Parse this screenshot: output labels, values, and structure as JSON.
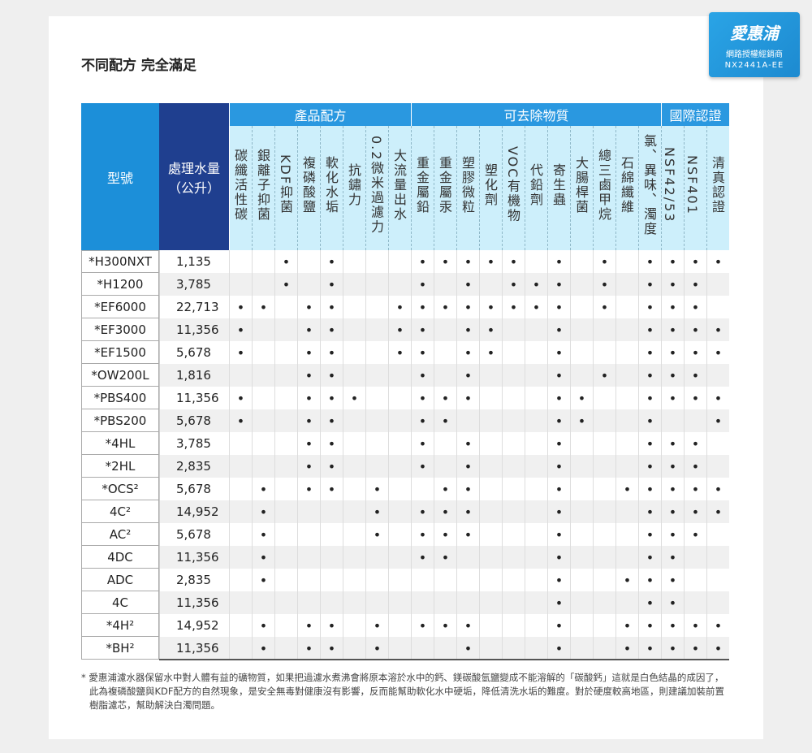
{
  "badge": {
    "brand": "愛惠浦",
    "line1": "網路授權經銷商",
    "line2": "NX2441A-EE"
  },
  "heading": "不同配方 完全滿足",
  "table": {
    "model_header": "型號",
    "capacity_header": [
      "處理水量",
      "（公升）"
    ],
    "groups": [
      {
        "title": "產品配方",
        "columns": [
          "碳纖活性碳",
          "銀離子抑菌",
          "KDF抑菌",
          "複磷酸鹽",
          "軟化水垢",
          "抗鏽力",
          "0.2微米過濾力",
          "大流量出水"
        ]
      },
      {
        "title": "可去除物質",
        "columns": [
          "重金屬鉛",
          "重金屬汞",
          "塑膠微粒",
          "塑化劑",
          "VOC有機物",
          "代鉛劑",
          "寄生蟲",
          "大腸桿菌",
          "總三鹵甲烷",
          "石綿纖維",
          "氯、異味、濁度"
        ]
      },
      {
        "title": "國際認證",
        "columns": [
          "NSF42/53",
          "NSF401",
          "清真認證"
        ]
      }
    ],
    "rows": [
      {
        "model": "*H300NXT",
        "capacity": "1,135",
        "marks": [
          null,
          null,
          "•",
          null,
          "•",
          null,
          null,
          null,
          "•",
          "•",
          "•",
          "•",
          "•",
          null,
          "•",
          null,
          "•",
          null,
          "•",
          "•",
          "•",
          "•"
        ]
      },
      {
        "model": "*H1200",
        "capacity": "3,785",
        "marks": [
          null,
          null,
          "•",
          null,
          "•",
          null,
          null,
          null,
          "•",
          null,
          "•",
          null,
          "•",
          "•",
          "•",
          null,
          "•",
          null,
          "•",
          "•",
          "•",
          null
        ]
      },
      {
        "model": "*EF6000",
        "capacity": "22,713",
        "marks": [
          "•",
          "•",
          null,
          "•",
          "•",
          null,
          null,
          "•",
          "•",
          "•",
          "•",
          "•",
          "•",
          "•",
          "•",
          null,
          "•",
          null,
          "•",
          "•",
          "•",
          null
        ]
      },
      {
        "model": "*EF3000",
        "capacity": "11,356",
        "marks": [
          "•",
          null,
          null,
          "•",
          "•",
          null,
          null,
          "•",
          "•",
          null,
          "•",
          "•",
          null,
          null,
          "•",
          null,
          null,
          null,
          "•",
          "•",
          "•",
          "•"
        ]
      },
      {
        "model": "*EF1500",
        "capacity": "5,678",
        "marks": [
          "•",
          null,
          null,
          "•",
          "•",
          null,
          null,
          "•",
          "•",
          null,
          "•",
          "•",
          null,
          null,
          "•",
          null,
          null,
          null,
          "•",
          "•",
          "•",
          "•"
        ]
      },
      {
        "model": "*OW200L",
        "capacity": "1,816",
        "marks": [
          null,
          null,
          null,
          "•",
          "•",
          null,
          null,
          null,
          "•",
          null,
          "•",
          null,
          null,
          null,
          "•",
          null,
          "•",
          null,
          "•",
          "•",
          "•",
          null
        ]
      },
      {
        "model": "*PBS400",
        "capacity": "11,356",
        "marks": [
          "•",
          null,
          null,
          "•",
          "•",
          "•",
          null,
          null,
          "•",
          "•",
          "•",
          null,
          null,
          null,
          "•",
          "•",
          null,
          null,
          "•",
          "•",
          "•",
          "•"
        ]
      },
      {
        "model": "*PBS200",
        "capacity": "5,678",
        "marks": [
          "•",
          null,
          null,
          "•",
          "•",
          null,
          null,
          null,
          "•",
          "•",
          null,
          null,
          null,
          null,
          "•",
          "•",
          null,
          null,
          "•",
          null,
          null,
          "•"
        ]
      },
      {
        "model": "*4HL",
        "capacity": "3,785",
        "marks": [
          null,
          null,
          null,
          "•",
          "•",
          null,
          null,
          null,
          "•",
          null,
          "•",
          null,
          null,
          null,
          "•",
          null,
          null,
          null,
          "•",
          "•",
          "•",
          null
        ]
      },
      {
        "model": "*2HL",
        "capacity": "2,835",
        "marks": [
          null,
          null,
          null,
          "•",
          "•",
          null,
          null,
          null,
          "•",
          null,
          "•",
          null,
          null,
          null,
          "•",
          null,
          null,
          null,
          "•",
          "•",
          "•",
          null
        ]
      },
      {
        "model": "*OCS²",
        "capacity": "5,678",
        "marks": [
          null,
          "•",
          null,
          "•",
          "•",
          null,
          "•",
          null,
          null,
          "•",
          "•",
          null,
          null,
          null,
          "•",
          null,
          null,
          "•",
          "•",
          "•",
          "•",
          "•"
        ]
      },
      {
        "model": "4C²",
        "capacity": "14,952",
        "marks": [
          null,
          "•",
          null,
          null,
          null,
          null,
          "•",
          null,
          "•",
          "•",
          "•",
          null,
          null,
          null,
          "•",
          null,
          null,
          null,
          "•",
          "•",
          "•",
          "•"
        ]
      },
      {
        "model": "AC²",
        "capacity": "5,678",
        "marks": [
          null,
          "•",
          null,
          null,
          null,
          null,
          "•",
          null,
          "•",
          "•",
          "•",
          null,
          null,
          null,
          "•",
          null,
          null,
          null,
          "•",
          "•",
          "•",
          null
        ]
      },
      {
        "model": "4DC",
        "capacity": "11,356",
        "marks": [
          null,
          "•",
          null,
          null,
          null,
          null,
          null,
          null,
          "•",
          "•",
          null,
          null,
          null,
          null,
          "•",
          null,
          null,
          null,
          "•",
          "•",
          null,
          null
        ]
      },
      {
        "model": "ADC",
        "capacity": "2,835",
        "marks": [
          null,
          "•",
          null,
          null,
          null,
          null,
          null,
          null,
          null,
          null,
          null,
          null,
          null,
          null,
          "•",
          null,
          null,
          "•",
          "•",
          "•",
          null,
          null
        ]
      },
      {
        "model": "4C",
        "capacity": "11,356",
        "marks": [
          null,
          null,
          null,
          null,
          null,
          null,
          null,
          null,
          null,
          null,
          null,
          null,
          null,
          null,
          "•",
          null,
          null,
          null,
          "•",
          "•",
          null,
          null
        ]
      },
      {
        "model": "*4H²",
        "capacity": "14,952",
        "marks": [
          null,
          "•",
          null,
          "•",
          "•",
          null,
          "•",
          null,
          "•",
          "•",
          "•",
          null,
          null,
          null,
          "•",
          null,
          null,
          "•",
          "•",
          "•",
          "•",
          "•"
        ]
      },
      {
        "model": "*BH²",
        "capacity": "11,356",
        "marks": [
          null,
          "•",
          null,
          "•",
          "•",
          null,
          "•",
          null,
          null,
          null,
          "•",
          null,
          null,
          null,
          "•",
          null,
          null,
          "•",
          "•",
          "•",
          "•",
          "•"
        ]
      }
    ]
  },
  "footnote": "* 愛惠浦濾水器保留水中對人體有益的礦物質，如果把過濾水煮沸會將原本溶於水中的鈣、鎂碳酸氫鹽變成不能溶解的「碳酸鈣」這就是白色結晶的成因了，此為複磷酸鹽與KDF配方的自然現象，是安全無毒對健康沒有影響，反而能幫助軟化水中硬垢，降低清洗水垢的難度。對於硬度較高地區，則建議加裝前置樹脂濾芯，幫助解決白濁問題。"
}
